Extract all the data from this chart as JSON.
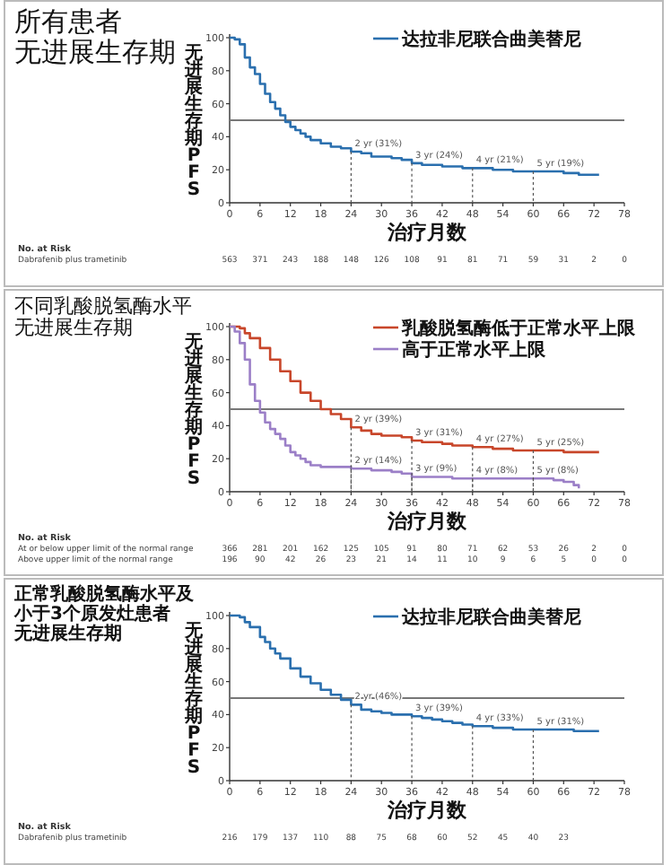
{
  "chart_data": [
    {
      "type": "step",
      "title": "所有患者",
      "subtitle": "无进展生存期",
      "xlabel": "治疗月数",
      "ylabel": "无进展生存期PFS",
      "xlim": [
        0,
        78
      ],
      "xticks": [
        0,
        6,
        12,
        18,
        24,
        30,
        36,
        42,
        48,
        54,
        60,
        66,
        72,
        78
      ],
      "ylim": [
        0,
        100
      ],
      "yticks": [
        0,
        20,
        40,
        60,
        80,
        100
      ],
      "legend": "top right",
      "series": [
        {
          "name": "达拉非尼联合曲美替尼",
          "color": "#2a6fae",
          "x": [
            0,
            1,
            2,
            3,
            4,
            5,
            6,
            7,
            8,
            9,
            10,
            11,
            12,
            13,
            14,
            15,
            16,
            18,
            20,
            22,
            24,
            26,
            28,
            30,
            32,
            34,
            36,
            38,
            40,
            42,
            44,
            46,
            48,
            50,
            52,
            54,
            56,
            58,
            60,
            62,
            64,
            66,
            68,
            69,
            73
          ],
          "values": [
            100,
            99,
            96,
            88,
            82,
            78,
            72,
            66,
            61,
            57,
            53,
            49,
            46,
            44,
            42,
            40,
            38,
            36,
            34,
            33,
            31,
            30,
            28,
            28,
            27,
            26,
            24,
            23,
            23,
            22,
            22,
            21,
            21,
            21,
            20,
            20,
            19,
            19,
            19,
            19,
            19,
            18,
            18,
            17,
            17
          ]
        }
      ],
      "ref_lines": [
        {
          "axis": "y",
          "value": 50,
          "color": "#777777"
        }
      ],
      "annotations": [
        {
          "text": "2 yr (31%)",
          "x": 24,
          "y": 31
        },
        {
          "text": "3 yr (24%)",
          "x": 36,
          "y": 24
        },
        {
          "text": "4 yr (21%)",
          "x": 48,
          "y": 21
        },
        {
          "text": "5 yr (19%)",
          "x": 60,
          "y": 19
        },
        "No. at Risk",
        "Dabrafenib plus trametinib",
        "563 371 243 188 148 126 108 91 81 71 59 31 2 0"
      ]
    },
    {
      "type": "step",
      "title": "不同乳酸脱氢酶水平",
      "subtitle": "无进展生存期",
      "xlabel": "治疗月数",
      "ylabel": "无进展生存期PFS",
      "xlim": [
        0,
        78
      ],
      "xticks": [
        0,
        6,
        12,
        18,
        24,
        30,
        36,
        42,
        48,
        54,
        60,
        66,
        72,
        78
      ],
      "ylim": [
        0,
        100
      ],
      "yticks": [
        0,
        20,
        40,
        60,
        80,
        100
      ],
      "legend": "top right",
      "series": [
        {
          "name": "乳酸脱氢酶低于正常水平上限",
          "color": "#c8462a",
          "x": [
            0,
            2,
            3,
            4,
            6,
            8,
            10,
            12,
            14,
            16,
            18,
            20,
            22,
            24,
            26,
            28,
            30,
            32,
            34,
            36,
            38,
            40,
            42,
            44,
            46,
            48,
            50,
            52,
            54,
            56,
            58,
            60,
            62,
            64,
            66,
            70,
            73
          ],
          "values": [
            100,
            99,
            96,
            93,
            87,
            80,
            73,
            67,
            60,
            55,
            50,
            47,
            44,
            39,
            37,
            35,
            34,
            34,
            33,
            31,
            30,
            30,
            29,
            28,
            28,
            27,
            27,
            26,
            26,
            25,
            25,
            25,
            25,
            25,
            24,
            24,
            24
          ]
        },
        {
          "name": "高于正常水平上限",
          "color": "#9b7fc7",
          "x": [
            0,
            1,
            2,
            3,
            4,
            5,
            6,
            7,
            8,
            9,
            10,
            11,
            12,
            13,
            14,
            15,
            16,
            18,
            20,
            22,
            24,
            28,
            32,
            34,
            36,
            40,
            44,
            48,
            52,
            56,
            60,
            62,
            64,
            66,
            68,
            69
          ],
          "values": [
            100,
            97,
            90,
            80,
            65,
            55,
            48,
            42,
            38,
            35,
            32,
            28,
            24,
            22,
            20,
            18,
            16,
            15,
            15,
            15,
            14,
            13,
            12,
            11,
            9,
            9,
            8,
            8,
            8,
            8,
            8,
            8,
            7,
            6,
            4,
            2
          ]
        }
      ],
      "ref_lines": [
        {
          "axis": "y",
          "value": 50,
          "color": "#777777"
        }
      ],
      "annotations": [
        {
          "text": "2 yr (39%)",
          "x": 24,
          "y": 39
        },
        {
          "text": "3 yr (31%)",
          "x": 36,
          "y": 31
        },
        {
          "text": "4 yr (27%)",
          "x": 48,
          "y": 27
        },
        {
          "text": "5 yr (25%)",
          "x": 60,
          "y": 25
        },
        {
          "text": "2 yr (14%)",
          "x": 24,
          "y": 14
        },
        {
          "text": "3 yr (9%)",
          "x": 36,
          "y": 9
        },
        {
          "text": "4 yr (8%)",
          "x": 48,
          "y": 8
        },
        {
          "text": "5 yr (8%)",
          "x": 60,
          "y": 8
        },
        "No. at Risk",
        "At or below upper limit of the normal range",
        "366 281 201 162 125 105 91 80 71 62 53 26 2 0",
        "Above upper limit of the normal range",
        "196 90 42 26 23 21 14 11 10 9 6 5 0 0"
      ]
    },
    {
      "type": "step",
      "title": "正常乳酸脱氢酶水平及小于3个原发灶患者",
      "subtitle": "无进展生存期",
      "xlabel": "治疗月数",
      "ylabel": "无进展生存期PFS",
      "xlim": [
        0,
        78
      ],
      "xticks": [
        0,
        6,
        12,
        18,
        24,
        30,
        36,
        42,
        48,
        54,
        60,
        66,
        72,
        78
      ],
      "ylim": [
        0,
        100
      ],
      "yticks": [
        0,
        20,
        40,
        60,
        80,
        100
      ],
      "legend": "top right",
      "series": [
        {
          "name": "达拉非尼联合曲美替尼",
          "color": "#2a6fae",
          "x": [
            0,
            2,
            3,
            4,
            6,
            7,
            8,
            9,
            10,
            12,
            14,
            16,
            18,
            20,
            22,
            24,
            26,
            28,
            30,
            32,
            34,
            36,
            38,
            40,
            42,
            44,
            46,
            48,
            50,
            52,
            54,
            56,
            58,
            60,
            62,
            64,
            66,
            68,
            70,
            73
          ],
          "values": [
            100,
            99,
            96,
            93,
            87,
            84,
            80,
            77,
            74,
            68,
            63,
            59,
            55,
            52,
            49,
            46,
            43,
            42,
            41,
            40,
            40,
            39,
            38,
            37,
            36,
            35,
            34,
            33,
            33,
            32,
            32,
            31,
            31,
            31,
            31,
            31,
            31,
            30,
            30,
            30
          ]
        }
      ],
      "ref_lines": [
        {
          "axis": "y",
          "value": 50,
          "color": "#777777"
        }
      ],
      "annotations": [
        {
          "text": "2 yr (46%)",
          "x": 24,
          "y": 46
        },
        {
          "text": "3 yr (39%)",
          "x": 36,
          "y": 39
        },
        {
          "text": "4 yr (33%)",
          "x": 48,
          "y": 33
        },
        {
          "text": "5 yr (31%)",
          "x": 60,
          "y": 31
        },
        "No. at Risk",
        "Dabrafenib plus trametinib",
        "216 179 137 110 88 75 68 60 52 45 40 23"
      ]
    }
  ]
}
